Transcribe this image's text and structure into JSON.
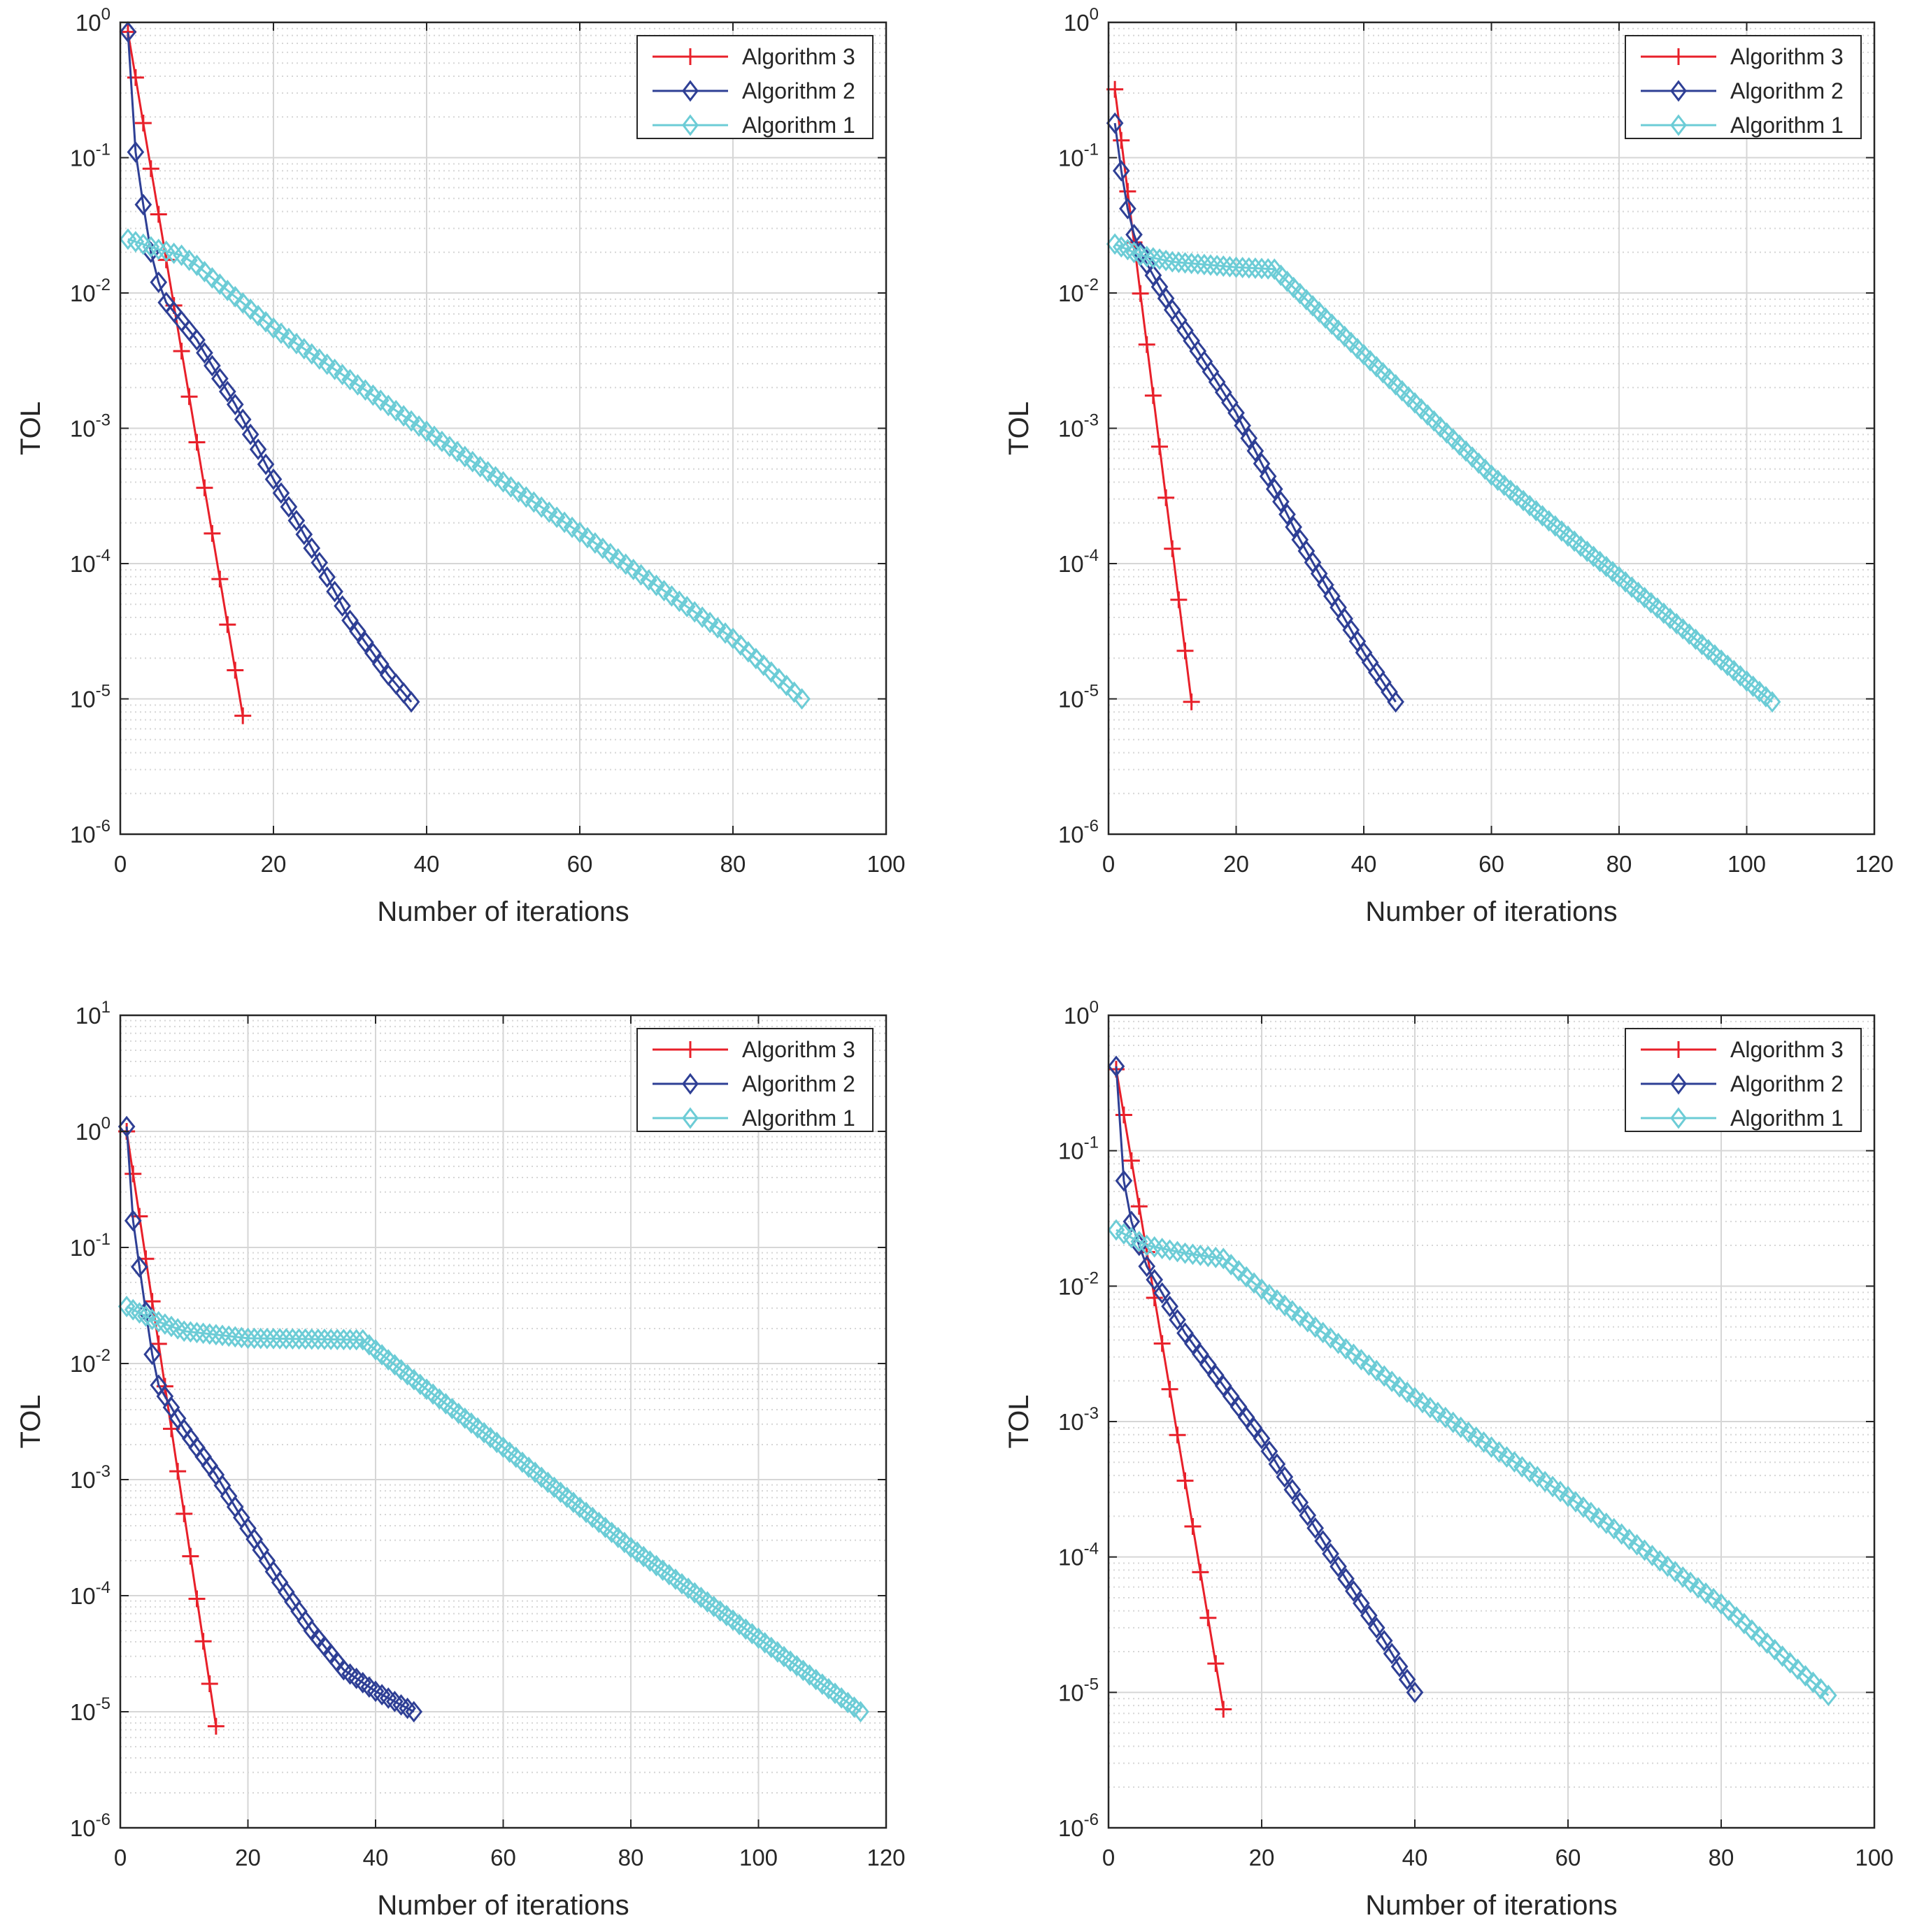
{
  "figure": {
    "colors": {
      "Algorithm 3": "#e8202a",
      "Algorithm 2": "#2e3f95",
      "Algorithm 1": "#6cccd6",
      "grid": "#d6d6d6",
      "axis": "#262626"
    }
  },
  "chart_data": [
    {
      "type": "line",
      "xlabel": "Number of iterations",
      "ylabel": "TOL",
      "xlim": [
        0,
        100
      ],
      "xticks": [
        "0",
        "20",
        "40",
        "60",
        "80",
        "100"
      ],
      "ylim_exp": [
        -6,
        0
      ],
      "y_scale": "log",
      "grid": "on",
      "legend_position": "top-right",
      "series": [
        {
          "name": "Algorithm 3",
          "marker": "plus",
          "n": 16,
          "start": 0.85,
          "end": 7.5e-06
        },
        {
          "name": "Algorithm 2",
          "marker": "diamond",
          "n": 38,
          "points": [
            [
              1,
              0.85
            ],
            [
              2,
              0.11
            ],
            [
              3,
              0.045
            ],
            [
              4,
              0.02
            ],
            [
              5,
              0.012
            ],
            [
              6,
              0.0085
            ],
            [
              10,
              0.0045
            ],
            [
              15,
              0.0015
            ],
            [
              20,
              0.00042
            ],
            [
              25,
              0.00013
            ],
            [
              30,
              3.8e-05
            ],
            [
              35,
              1.5e-05
            ],
            [
              38,
              9.5e-06
            ]
          ]
        },
        {
          "name": "Algorithm 1",
          "marker": "diamond",
          "n": 89,
          "points": [
            [
              1,
              0.025
            ],
            [
              5,
              0.021
            ],
            [
              8,
              0.019
            ],
            [
              10,
              0.016
            ],
            [
              20,
              0.0055
            ],
            [
              40,
              0.00095
            ],
            [
              60,
              0.00017
            ],
            [
              80,
              2.8e-05
            ],
            [
              89,
              1e-05
            ]
          ]
        }
      ]
    },
    {
      "type": "line",
      "xlabel": "Number of iterations",
      "ylabel": "TOL",
      "xlim": [
        0,
        120
      ],
      "xticks": [
        "0",
        "20",
        "40",
        "60",
        "80",
        "100",
        "120"
      ],
      "ylim_exp": [
        -6,
        0
      ],
      "y_scale": "log",
      "grid": "on",
      "legend_position": "top-right",
      "series": [
        {
          "name": "Algorithm 3",
          "marker": "plus",
          "n": 13,
          "start": 0.32,
          "end": 9.5e-06
        },
        {
          "name": "Algorithm 2",
          "marker": "diamond",
          "n": 45,
          "points": [
            [
              1,
              0.18
            ],
            [
              2,
              0.08
            ],
            [
              3,
              0.042
            ],
            [
              4,
              0.027
            ],
            [
              5,
              0.02
            ],
            [
              10,
              0.0075
            ],
            [
              20,
              0.0013
            ],
            [
              30,
              0.00015
            ],
            [
              40,
              2.2e-05
            ],
            [
              45,
              9.5e-06
            ]
          ]
        },
        {
          "name": "Algorithm 1",
          "marker": "diamond",
          "n": 104,
          "points": [
            [
              1,
              0.023
            ],
            [
              5,
              0.019
            ],
            [
              10,
              0.017
            ],
            [
              20,
              0.0155
            ],
            [
              26,
              0.015
            ],
            [
              40,
              0.0035
            ],
            [
              60,
              0.00045
            ],
            [
              80,
              8e-05
            ],
            [
              104,
              9.5e-06
            ]
          ]
        }
      ]
    },
    {
      "type": "line",
      "xlabel": "Number of iterations",
      "ylabel": "TOL",
      "xlim": [
        0,
        120
      ],
      "xticks": [
        "0",
        "20",
        "40",
        "60",
        "80",
        "100",
        "120"
      ],
      "ylim_exp": [
        -6,
        1
      ],
      "y_scale": "log",
      "grid": "on",
      "legend_position": "top-right",
      "series": [
        {
          "name": "Algorithm 3",
          "marker": "plus",
          "n": 15,
          "start": 1.0,
          "end": 7.5e-06
        },
        {
          "name": "Algorithm 2",
          "marker": "diamond",
          "n": 46,
          "points": [
            [
              1,
              1.1
            ],
            [
              2,
              0.17
            ],
            [
              3,
              0.068
            ],
            [
              4,
              0.028
            ],
            [
              5,
              0.012
            ],
            [
              6,
              0.0065
            ],
            [
              10,
              0.0027
            ],
            [
              15,
              0.0011
            ],
            [
              20,
              0.00038
            ],
            [
              25,
              0.00013
            ],
            [
              30,
              5e-05
            ],
            [
              35,
              2.3e-05
            ],
            [
              40,
              1.5e-05
            ],
            [
              46,
              1e-05
            ]
          ]
        },
        {
          "name": "Algorithm 1",
          "marker": "diamond",
          "n": 116,
          "points": [
            [
              1,
              0.031
            ],
            [
              5,
              0.024
            ],
            [
              10,
              0.019
            ],
            [
              20,
              0.0165
            ],
            [
              38,
              0.016
            ],
            [
              45,
              0.008
            ],
            [
              60,
              0.0019
            ],
            [
              80,
              0.00026
            ],
            [
              100,
              4.3e-05
            ],
            [
              116,
              1e-05
            ]
          ]
        }
      ]
    },
    {
      "type": "line",
      "xlabel": "Number of iterations",
      "ylabel": "TOL",
      "xlim": [
        0,
        100
      ],
      "xticks": [
        "0",
        "20",
        "40",
        "60",
        "80",
        "100"
      ],
      "ylim_exp": [
        -6,
        0
      ],
      "y_scale": "log",
      "grid": "on",
      "legend_position": "top-right",
      "series": [
        {
          "name": "Algorithm 3",
          "marker": "plus",
          "n": 15,
          "start": 0.4,
          "end": 7.5e-06
        },
        {
          "name": "Algorithm 2",
          "marker": "diamond",
          "n": 40,
          "points": [
            [
              1,
              0.42
            ],
            [
              2,
              0.06
            ],
            [
              3,
              0.03
            ],
            [
              4,
              0.02
            ],
            [
              5,
              0.014
            ],
            [
              10,
              0.0045
            ],
            [
              20,
              0.00075
            ],
            [
              30,
              8.5e-05
            ],
            [
              35,
              3e-05
            ],
            [
              40,
              1e-05
            ]
          ]
        },
        {
          "name": "Algorithm 1",
          "marker": "diamond",
          "n": 94,
          "points": [
            [
              1,
              0.026
            ],
            [
              5,
              0.02
            ],
            [
              10,
              0.0175
            ],
            [
              15,
              0.016
            ],
            [
              20,
              0.0095
            ],
            [
              40,
              0.0015
            ],
            [
              60,
              0.00028
            ],
            [
              80,
              4.5e-05
            ],
            [
              94,
              9.5e-06
            ]
          ]
        }
      ]
    }
  ]
}
